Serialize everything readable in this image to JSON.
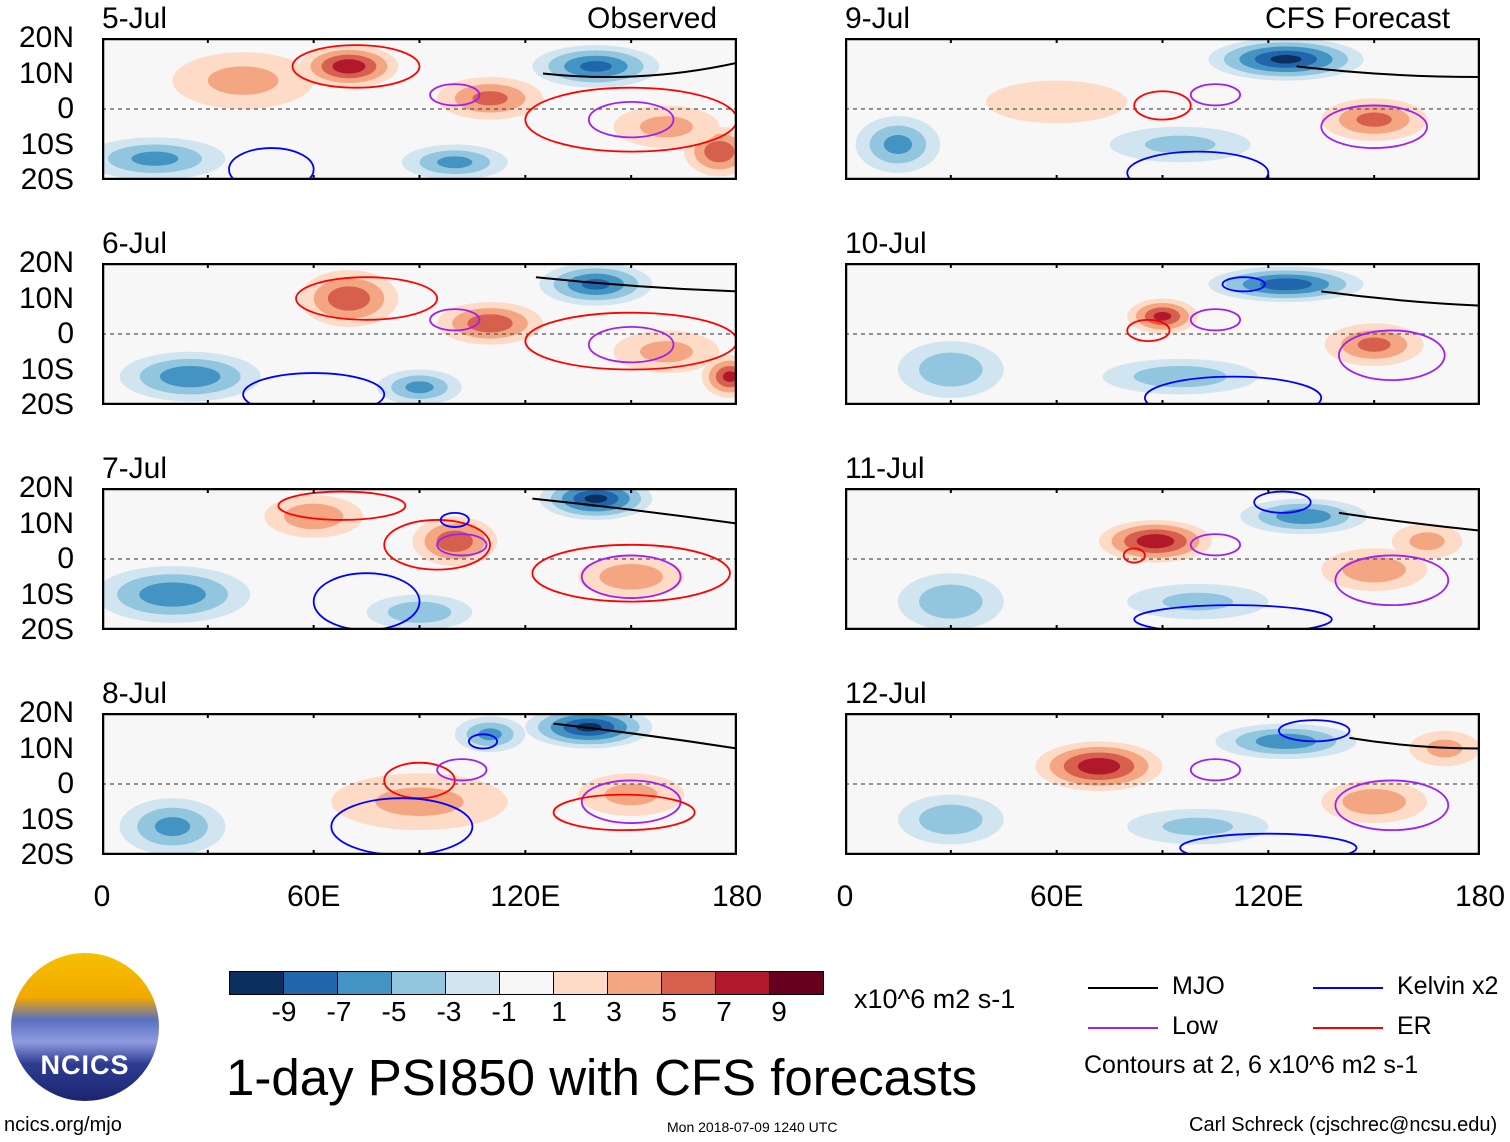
{
  "headers": {
    "observed": "Observed",
    "forecast": "CFS Forecast"
  },
  "lat_labels": [
    "20N",
    "10N",
    "0",
    "10S",
    "20S"
  ],
  "lon_labels": [
    "0",
    "60E",
    "120E",
    "180"
  ],
  "colorbar": {
    "labels": [
      "-9",
      "-7",
      "-5",
      "-3",
      "-1",
      "1",
      "3",
      "5",
      "7",
      "9"
    ],
    "colors": [
      "#0b2f5e",
      "#2166ac",
      "#4393c3",
      "#92c5de",
      "#d1e5f0",
      "#f7f7f7",
      "#fddbc7",
      "#f4a582",
      "#d6604d",
      "#b2182b",
      "#67001f"
    ],
    "units": "x10^6 m2 s-1"
  },
  "title": "1-day PSI850 with CFS forecasts",
  "timestamp": "Mon 2018-07-09 1240 UTC",
  "site": "ncics.org/mjo",
  "author": "Carl Schreck (cjschrec@ncsu.edu)",
  "logo_text": "NCICS",
  "legend": {
    "items": [
      {
        "label": "MJO",
        "color": "#000000"
      },
      {
        "label": "Kelvin x2",
        "color": "#0000ff"
      },
      {
        "label": "Low",
        "color": "#a020f0"
      },
      {
        "label": "ER",
        "color": "#ff0000"
      }
    ],
    "note": "Contours at 2, 6 x10^6 m2 s-1"
  },
  "chart_data": {
    "type": "heatmap",
    "xlim": [
      0,
      180
    ],
    "ylim": [
      -20,
      20
    ],
    "variable": "PSI850 anomaly",
    "panels": [
      {
        "date": "5-Jul",
        "anom": [
          [
            70,
            12,
            8,
            14,
            6
          ],
          [
            110,
            3,
            5,
            15,
            6
          ],
          [
            140,
            12,
            -7,
            18,
            6
          ],
          [
            175,
            -12,
            6,
            10,
            7
          ],
          [
            15,
            -14,
            -5,
            20,
            6
          ],
          [
            100,
            -15,
            -5,
            15,
            5
          ],
          [
            40,
            8,
            3,
            20,
            8
          ],
          [
            160,
            -5,
            3,
            15,
            6
          ]
        ],
        "contours": [
          [
            "ER",
            72,
            12,
            18,
            6
          ],
          [
            "Low",
            100,
            4,
            7,
            3
          ],
          [
            "Low",
            150,
            -3,
            12,
            5
          ],
          [
            "ER",
            150,
            -3,
            30,
            9
          ],
          [
            "Kelvin",
            48,
            -17,
            12,
            6
          ],
          [
            "MJO_line",
            125,
            10,
            180,
            13
          ]
        ]
      },
      {
        "date": "9-Jul",
        "anom": [
          [
            125,
            14,
            -9,
            22,
            6
          ],
          [
            15,
            -10,
            -5,
            12,
            8
          ],
          [
            150,
            -3,
            5,
            15,
            6
          ],
          [
            60,
            2,
            2,
            20,
            6
          ],
          [
            95,
            -10,
            -3,
            20,
            5
          ]
        ],
        "contours": [
          [
            "ER",
            90,
            1,
            8,
            4
          ],
          [
            "Low",
            105,
            4,
            7,
            3
          ],
          [
            "Low",
            150,
            -5,
            15,
            6
          ],
          [
            "Kelvin",
            100,
            -18,
            20,
            6
          ],
          [
            "MJO_line",
            128,
            12,
            180,
            9
          ]
        ]
      },
      {
        "date": "6-Jul",
        "anom": [
          [
            70,
            10,
            6,
            14,
            8
          ],
          [
            110,
            3,
            6,
            15,
            6
          ],
          [
            140,
            14,
            -7,
            16,
            6
          ],
          [
            178,
            -12,
            7,
            8,
            6
          ],
          [
            25,
            -12,
            -6,
            20,
            7
          ],
          [
            90,
            -15,
            -5,
            12,
            5
          ],
          [
            160,
            -5,
            3,
            15,
            6
          ]
        ],
        "contours": [
          [
            "ER",
            75,
            10,
            20,
            6
          ],
          [
            "Low",
            100,
            4,
            7,
            3
          ],
          [
            "Low",
            150,
            -3,
            12,
            5
          ],
          [
            "ER",
            150,
            -2,
            30,
            8
          ],
          [
            "Kelvin",
            60,
            -17,
            20,
            6
          ],
          [
            "MJO_line",
            123,
            16,
            180,
            12
          ]
        ]
      },
      {
        "date": "10-Jul",
        "anom": [
          [
            125,
            14,
            -8,
            22,
            5
          ],
          [
            90,
            5,
            7,
            10,
            5
          ],
          [
            150,
            -3,
            5,
            14,
            6
          ],
          [
            30,
            -10,
            -4,
            15,
            8
          ],
          [
            95,
            -12,
            -4,
            22,
            5
          ]
        ],
        "contours": [
          [
            "ER",
            86,
            1,
            6,
            3
          ],
          [
            "Low",
            105,
            4,
            7,
            3
          ],
          [
            "Kelvin",
            113,
            14,
            6,
            2
          ],
          [
            "Low",
            155,
            -6,
            15,
            7
          ],
          [
            "Kelvin",
            110,
            -18,
            25,
            6
          ],
          [
            "MJO_line",
            135,
            12,
            180,
            8
          ]
        ]
      },
      {
        "date": "7-Jul",
        "anom": [
          [
            140,
            17,
            -9,
            16,
            6
          ],
          [
            100,
            5,
            6,
            12,
            7
          ],
          [
            60,
            12,
            4,
            14,
            6
          ],
          [
            20,
            -10,
            -6,
            22,
            8
          ],
          [
            150,
            -5,
            4,
            15,
            6
          ],
          [
            90,
            -15,
            -4,
            15,
            5
          ]
        ],
        "contours": [
          [
            "ER",
            95,
            4,
            15,
            7
          ],
          [
            "ER",
            68,
            15,
            18,
            4
          ],
          [
            "Low",
            102,
            4,
            7,
            3
          ],
          [
            "Kelvin",
            100,
            11,
            4,
            2
          ],
          [
            "Low",
            150,
            -5,
            14,
            6
          ],
          [
            "ER",
            150,
            -4,
            28,
            8
          ],
          [
            "Kelvin",
            75,
            -12,
            15,
            8
          ],
          [
            "MJO_line",
            122,
            17,
            180,
            10
          ]
        ]
      },
      {
        "date": "11-Jul",
        "anom": [
          [
            88,
            5,
            8,
            16,
            6
          ],
          [
            130,
            12,
            -6,
            18,
            5
          ],
          [
            150,
            -3,
            4,
            15,
            6
          ],
          [
            30,
            -12,
            -4,
            15,
            8
          ],
          [
            165,
            5,
            3,
            10,
            5
          ],
          [
            100,
            -12,
            -3,
            20,
            5
          ]
        ],
        "contours": [
          [
            "ER",
            82,
            1,
            3,
            2
          ],
          [
            "Low",
            105,
            4,
            7,
            3
          ],
          [
            "Kelvin",
            124,
            16,
            8,
            3
          ],
          [
            "Low",
            155,
            -6,
            16,
            7
          ],
          [
            "Kelvin",
            110,
            -17,
            28,
            4
          ],
          [
            "MJO_line",
            140,
            13,
            180,
            8
          ]
        ]
      },
      {
        "date": "8-Jul",
        "anom": [
          [
            138,
            16,
            -9,
            18,
            6
          ],
          [
            110,
            14,
            -5,
            10,
            5
          ],
          [
            20,
            -12,
            -5,
            15,
            8
          ],
          [
            90,
            -5,
            3,
            25,
            8
          ],
          [
            150,
            -3,
            3,
            15,
            6
          ]
        ],
        "contours": [
          [
            "ER",
            90,
            1,
            10,
            5
          ],
          [
            "Low",
            102,
            4,
            7,
            3
          ],
          [
            "Kelvin",
            108,
            12,
            4,
            2
          ],
          [
            "Low",
            150,
            -5,
            14,
            6
          ],
          [
            "ER",
            148,
            -8,
            20,
            5
          ],
          [
            "Kelvin",
            85,
            -12,
            20,
            8
          ],
          [
            "MJO_line",
            128,
            17,
            180,
            10
          ]
        ]
      },
      {
        "date": "12-Jul",
        "anom": [
          [
            72,
            5,
            8,
            18,
            7
          ],
          [
            125,
            12,
            -6,
            20,
            5
          ],
          [
            150,
            -5,
            4,
            15,
            6
          ],
          [
            30,
            -10,
            -4,
            15,
            7
          ],
          [
            100,
            -12,
            -3,
            20,
            5
          ],
          [
            170,
            10,
            3,
            10,
            5
          ]
        ],
        "contours": [
          [
            "Low",
            105,
            4,
            7,
            3
          ],
          [
            "Kelvin",
            133,
            15,
            10,
            3
          ],
          [
            "Low",
            155,
            -6,
            16,
            7
          ],
          [
            "Kelvin",
            120,
            -18,
            25,
            4
          ],
          [
            "MJO_line",
            143,
            13,
            180,
            10
          ]
        ]
      }
    ]
  }
}
